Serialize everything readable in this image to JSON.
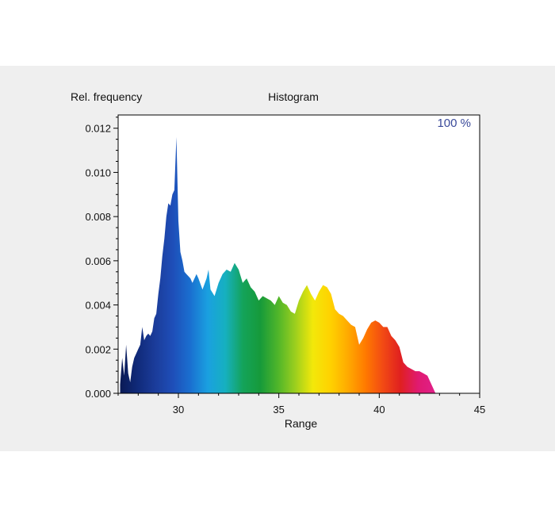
{
  "chart_data": {
    "type": "area",
    "title": "Histogram",
    "xlabel": "Range",
    "ylabel": "Rel. frequency",
    "annotation": "100 %",
    "xlim": [
      27,
      45
    ],
    "ylim": [
      0,
      0.0126
    ],
    "x_ticks": [
      30,
      35,
      40,
      45
    ],
    "x_tick_labels": [
      "30",
      "35",
      "40",
      "45"
    ],
    "y_ticks": [
      0,
      0.002,
      0.004,
      0.006,
      0.008,
      0.01,
      0.012
    ],
    "y_tick_labels": [
      "0.000",
      "0.002",
      "0.004",
      "0.006",
      "0.008",
      "0.010",
      "0.012"
    ],
    "grid": false,
    "legend": "none",
    "series": [
      {
        "x": [
          27.1,
          27.2,
          27.3,
          27.4,
          27.5,
          27.6,
          27.7,
          27.8,
          27.9,
          28.0,
          28.1,
          28.2,
          28.3,
          28.4,
          28.5,
          28.6,
          28.7,
          28.8,
          28.9,
          29.0,
          29.1,
          29.2,
          29.3,
          29.4,
          29.5,
          29.6,
          29.7,
          29.8,
          29.9,
          30.0,
          30.1,
          30.2,
          30.3,
          30.4,
          30.5,
          30.6,
          30.7,
          30.8,
          30.9,
          31.0,
          31.2,
          31.4,
          31.5,
          31.6,
          31.8,
          32.0,
          32.2,
          32.4,
          32.6,
          32.8,
          33.0,
          33.2,
          33.4,
          33.6,
          33.8,
          34.0,
          34.2,
          34.4,
          34.6,
          34.8,
          35.0,
          35.2,
          35.4,
          35.6,
          35.8,
          36.0,
          36.2,
          36.4,
          36.6,
          36.8,
          37.0,
          37.2,
          37.4,
          37.6,
          37.8,
          38.0,
          38.2,
          38.4,
          38.6,
          38.8,
          39.0,
          39.2,
          39.4,
          39.6,
          39.8,
          40.0,
          40.2,
          40.4,
          40.6,
          40.8,
          41.0,
          41.2,
          41.4,
          41.6,
          41.8,
          42.0,
          42.2,
          42.4,
          42.6,
          42.8
        ],
        "y": [
          0.0004,
          0.0016,
          0.0008,
          0.0022,
          0.0009,
          0.0005,
          0.0012,
          0.0016,
          0.0018,
          0.002,
          0.0022,
          0.003,
          0.0024,
          0.0026,
          0.0027,
          0.0026,
          0.0028,
          0.0034,
          0.0036,
          0.0045,
          0.0052,
          0.0062,
          0.007,
          0.008,
          0.0086,
          0.0085,
          0.009,
          0.0092,
          0.0116,
          0.0078,
          0.0064,
          0.006,
          0.0055,
          0.0054,
          0.0053,
          0.0052,
          0.005,
          0.0052,
          0.0054,
          0.0052,
          0.0047,
          0.0052,
          0.0056,
          0.0047,
          0.0044,
          0.005,
          0.0054,
          0.0056,
          0.0055,
          0.0059,
          0.0056,
          0.005,
          0.0052,
          0.0048,
          0.0046,
          0.0042,
          0.0044,
          0.0043,
          0.0042,
          0.004,
          0.0044,
          0.0041,
          0.004,
          0.0037,
          0.0036,
          0.0042,
          0.0046,
          0.0049,
          0.0045,
          0.0042,
          0.0046,
          0.0049,
          0.0048,
          0.0045,
          0.0038,
          0.0036,
          0.0035,
          0.0033,
          0.0031,
          0.003,
          0.0022,
          0.0025,
          0.0029,
          0.0032,
          0.0033,
          0.0032,
          0.003,
          0.003,
          0.0026,
          0.0024,
          0.0021,
          0.0014,
          0.0012,
          0.0011,
          0.001,
          0.001,
          0.0009,
          0.0008,
          0.0004,
          0.0
        ]
      }
    ],
    "colors": {
      "spectrum": [
        "#0a1a55",
        "#102a7a",
        "#1b3c9a",
        "#1e4eb8",
        "#1a6fd0",
        "#1aa0e0",
        "#16b0c0",
        "#14a35a",
        "#169a3a",
        "#4fb52a",
        "#9ccf1e",
        "#f3e80a",
        "#ffd200",
        "#ffaa00",
        "#ff7a00",
        "#f24a14",
        "#e02020",
        "#e01a70",
        "#e0208a"
      ],
      "axis": "#000000",
      "plot_background": "#ffffff",
      "panel_background": "#efefef"
    }
  }
}
